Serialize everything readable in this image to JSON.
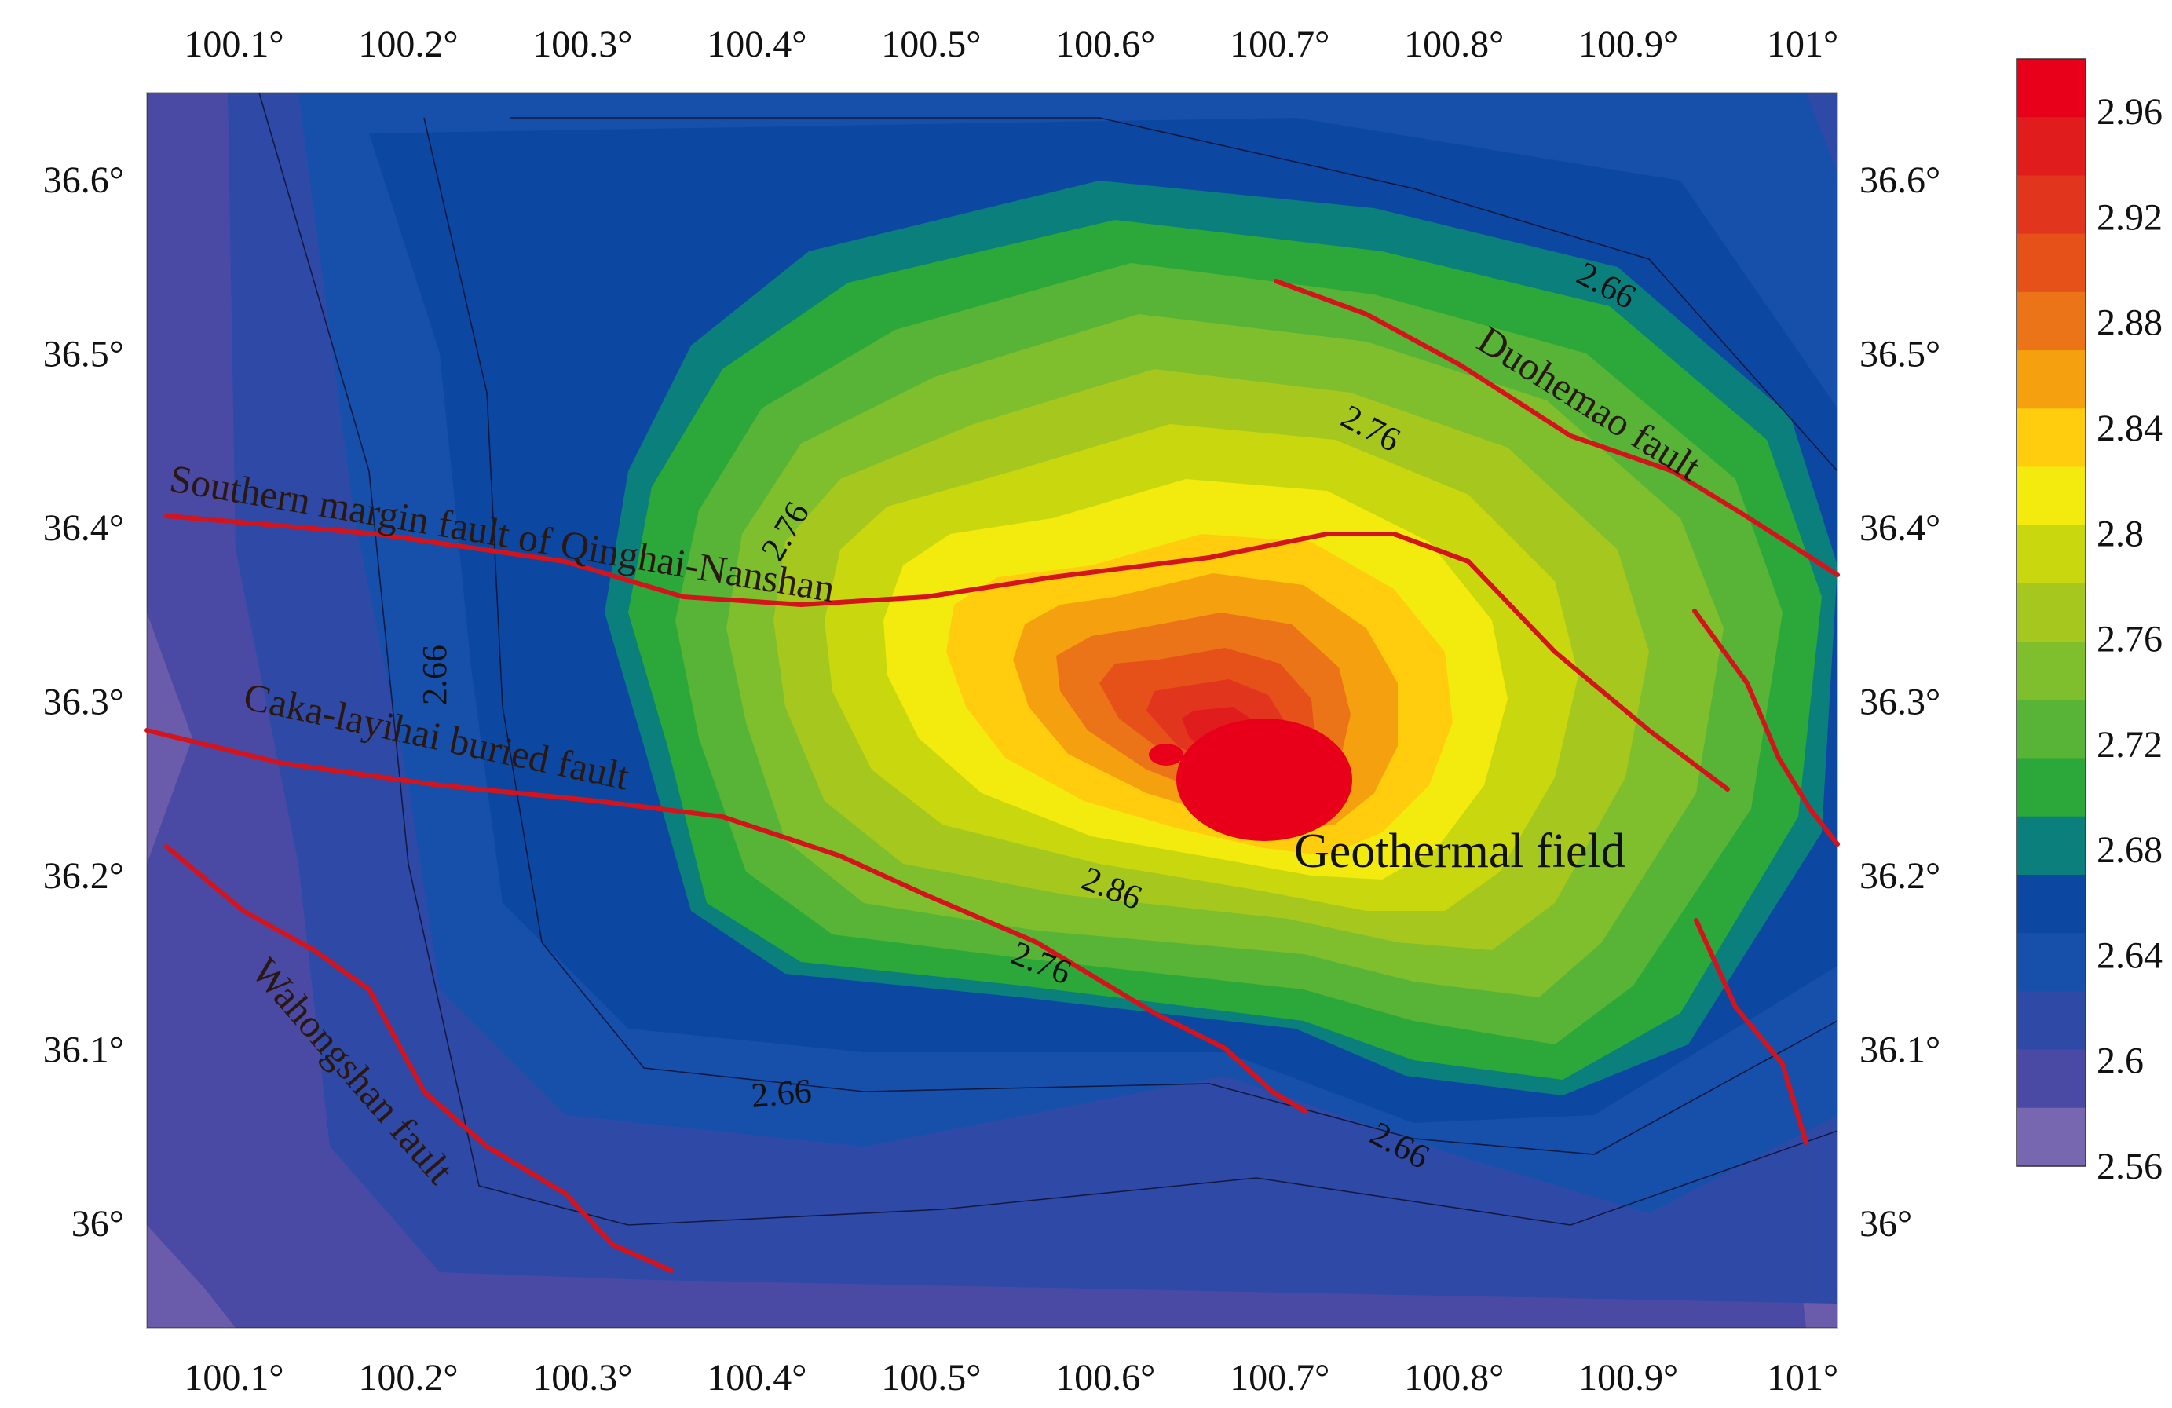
{
  "map": {
    "x_ticks": [
      "100.1°",
      "100.2°",
      "100.3°",
      "100.4°",
      "100.5°",
      "100.6°",
      "100.7°",
      "100.8°",
      "100.9°",
      "101°"
    ],
    "y_ticks": [
      "36.6°",
      "36.5°",
      "36.4°",
      "36.3°",
      "36.2°",
      "36.1°",
      "36°"
    ],
    "contour_labels": [
      "2.66",
      "2.76",
      "2.76",
      "2.66",
      "2.86",
      "2.76",
      "2.66",
      "2.66"
    ],
    "fault_labels": {
      "qinghai_nanshan": "Southern margin fault of Qinghai-Nanshan",
      "caka": "Caka-layihai buried fault",
      "wahongshan": "Wahongshan fault",
      "duohemao": "Duohemao fault"
    },
    "geothermal_label": "Geothermal field",
    "fault_color": "#d4141c",
    "geothermal_color": "#e8001a"
  },
  "colorbar": {
    "labels": [
      "2.96",
      "2.92",
      "2.88",
      "2.84",
      "2.8",
      "2.76",
      "2.72",
      "2.68",
      "2.64",
      "2.6",
      "2.56"
    ],
    "colors": [
      "#e8001a",
      "#e01c1c",
      "#e2351e",
      "#e65019",
      "#eb7418",
      "#f5a00e",
      "#ffcd0d",
      "#f3ea0e",
      "#c9d80e",
      "#a6c81e",
      "#7fbe2c",
      "#57b437",
      "#2ca83a",
      "#0a7f7b",
      "#0c48a2",
      "#1650ab",
      "#2e4aa6",
      "#4a4aa4",
      "#7766b0"
    ]
  },
  "chart_data": {
    "type": "heatmap",
    "title": "",
    "xlabel": "",
    "ylabel": "",
    "xlim": [
      100.05,
      101.02
    ],
    "ylim": [
      35.94,
      36.65
    ],
    "x_ticks": [
      100.1,
      100.2,
      100.3,
      100.4,
      100.5,
      100.6,
      100.7,
      100.8,
      100.9,
      101.0
    ],
    "y_ticks": [
      36.0,
      36.1,
      36.2,
      36.3,
      36.4,
      36.5,
      36.6
    ],
    "colorbar_range": [
      2.56,
      2.98
    ],
    "colorbar_ticks": [
      2.56,
      2.6,
      2.64,
      2.68,
      2.72,
      2.76,
      2.8,
      2.84,
      2.88,
      2.92,
      2.96
    ],
    "peak": {
      "lon": 100.69,
      "lat": 36.26,
      "value": 2.96
    },
    "annotations": [
      "Southern margin fault of Qinghai-Nanshan",
      "Caka-layihai buried fault",
      "Wahongshan fault",
      "Duohemao fault",
      "Geothermal field"
    ]
  }
}
